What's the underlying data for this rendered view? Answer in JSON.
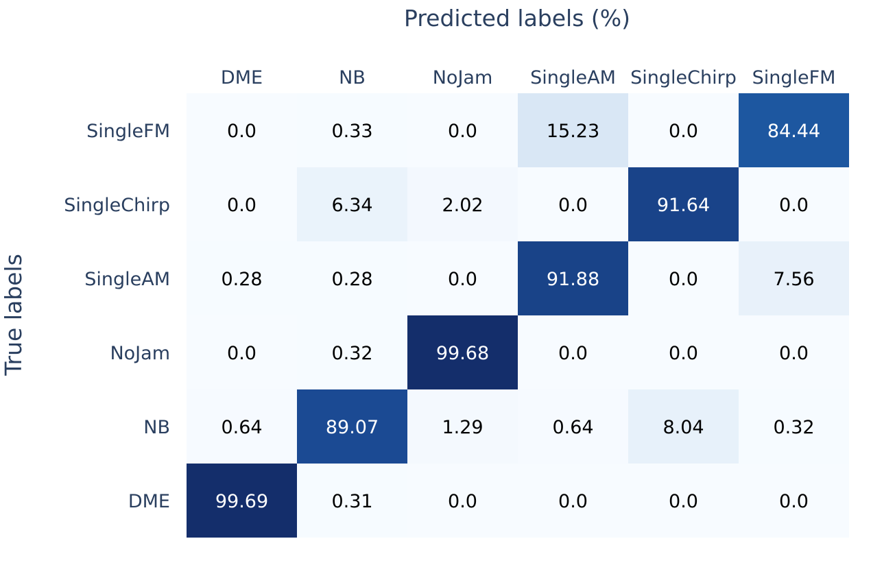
{
  "chart_data": {
    "type": "heatmap",
    "xlabel": "Predicted labels (%)",
    "ylabel": "True labels",
    "x_categories": [
      "DME",
      "NB",
      "NoJam",
      "SingleAM",
      "SingleChirp",
      "SingleFM"
    ],
    "y_categories": [
      "SingleFM",
      "SingleChirp",
      "SingleAM",
      "NoJam",
      "NB",
      "DME"
    ],
    "values": [
      [
        "0.0",
        "0.33",
        "0.0",
        "15.23",
        "0.0",
        "84.44"
      ],
      [
        "0.0",
        "6.34",
        "2.02",
        "0.0",
        "91.64",
        "0.0"
      ],
      [
        "0.28",
        "0.28",
        "0.0",
        "91.88",
        "0.0",
        "7.56"
      ],
      [
        "0.0",
        "0.32",
        "99.68",
        "0.0",
        "0.0",
        "0.0"
      ],
      [
        "0.64",
        "89.07",
        "1.29",
        "0.64",
        "8.04",
        "0.32"
      ],
      [
        "99.69",
        "0.31",
        "0.0",
        "0.0",
        "0.0",
        "0.0"
      ]
    ],
    "x_axis_position": "top",
    "colorscale": "Blues",
    "colorscale_stops": [
      "#f7fbff",
      "#deebf7",
      "#c6dbef",
      "#9ecae1",
      "#6baed6",
      "#4292c6",
      "#2171b5",
      "#1c4f9a",
      "#142e6b"
    ],
    "text_color_light": "#ffffff",
    "text_color_dark": "#000000",
    "grid": false
  }
}
